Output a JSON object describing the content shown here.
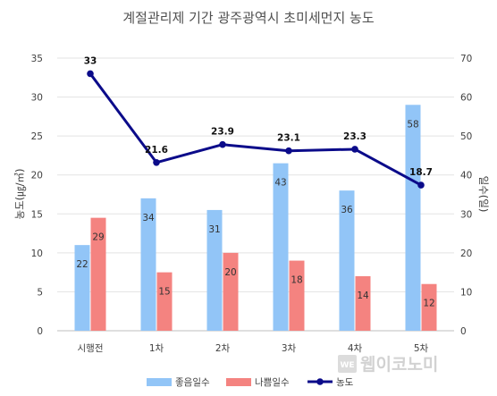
{
  "chart_data": {
    "type": "bar",
    "title": "계절관리제 기간 광주광역시 초미세먼지 농도",
    "categories": [
      "시행전",
      "1차",
      "2차",
      "3차",
      "4차",
      "5차"
    ],
    "series": [
      {
        "name": "좋음일수",
        "type": "bar",
        "axis": "right",
        "color": "#92C5F7",
        "values": [
          22,
          34,
          31,
          43,
          36,
          58
        ]
      },
      {
        "name": "나쁨일수",
        "type": "bar",
        "axis": "right",
        "color": "#F48380",
        "values": [
          29,
          15,
          20,
          18,
          14,
          12
        ]
      },
      {
        "name": "농도",
        "type": "line",
        "axis": "left",
        "color": "#0B0B8A",
        "values": [
          33,
          21.6,
          23.9,
          23.1,
          23.3,
          18.7
        ]
      }
    ],
    "ylabel": "농도(㎍/㎥)",
    "ylabel_right": "일수(일)",
    "ylim": [
      0,
      35
    ],
    "ylim_right": [
      0,
      70
    ],
    "yticks": [
      0,
      5,
      10,
      15,
      20,
      25,
      30,
      35
    ],
    "yticks_right": [
      0,
      10,
      20,
      30,
      40,
      50,
      60,
      70
    ],
    "grid": true,
    "legend_position": "bottom"
  },
  "watermark": {
    "box_text": "WE",
    "text": "웹이코노미"
  }
}
